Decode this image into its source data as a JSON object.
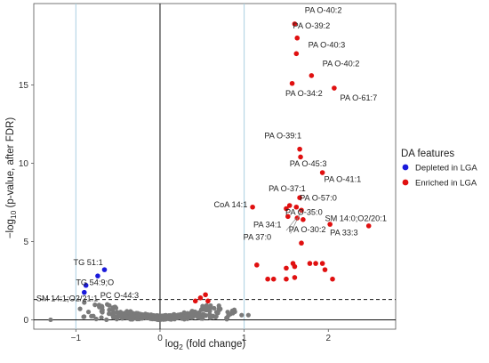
{
  "chart_data": {
    "type": "scatter",
    "title": "",
    "xlabel_main": "log",
    "xlabel_sub": "2",
    "xlabel_rest": " (fold change)",
    "ylabel_pre": "−log",
    "ylabel_sub": "10",
    "ylabel_rest": " (p-value, after FDR)",
    "xlim": [
      -1.5,
      2.8
    ],
    "ylim": [
      -0.6,
      20.2
    ],
    "x_ticks": [
      -1,
      0,
      1,
      2
    ],
    "x_tick_labels": [
      "−1",
      "0",
      "1",
      "2"
    ],
    "y_ticks": [
      0,
      5,
      10,
      15
    ],
    "y_tick_labels": [
      "0",
      "5",
      "10",
      "15"
    ],
    "fc_threshold_lines": [
      -1,
      1
    ],
    "significance_threshold": 1.3,
    "grid": false,
    "legend": {
      "title": "DA features",
      "placement": "right",
      "entries": [
        {
          "label": "Depleted in LGA",
          "color": "#1a1adb"
        },
        {
          "label": "Enriched in LGA",
          "color": "#e01010"
        }
      ]
    },
    "colors": {
      "not_significant": "#7a7a7a",
      "depleted": "#1a1adb",
      "enriched": "#e01010",
      "threshold_line": "#a9cfe0"
    },
    "series": [
      {
        "name": "Depleted in LGA",
        "points": [
          {
            "x": -0.66,
            "y": 3.2
          },
          {
            "x": -0.74,
            "y": 2.8
          },
          {
            "x": -0.88,
            "y": 2.2
          },
          {
            "x": -0.9,
            "y": 1.75
          }
        ]
      },
      {
        "name": "Enriched in LGA",
        "points": [
          {
            "x": 1.6,
            "y": 18.9
          },
          {
            "x": 1.63,
            "y": 18.0
          },
          {
            "x": 1.62,
            "y": 17.0
          },
          {
            "x": 1.8,
            "y": 15.6
          },
          {
            "x": 1.57,
            "y": 15.1
          },
          {
            "x": 2.07,
            "y": 14.8
          },
          {
            "x": 1.66,
            "y": 10.9
          },
          {
            "x": 1.67,
            "y": 10.4
          },
          {
            "x": 1.93,
            "y": 9.4
          },
          {
            "x": 1.66,
            "y": 7.8
          },
          {
            "x": 1.1,
            "y": 7.2
          },
          {
            "x": 1.54,
            "y": 7.3
          },
          {
            "x": 1.62,
            "y": 7.2
          },
          {
            "x": 1.5,
            "y": 7.1
          },
          {
            "x": 1.68,
            "y": 7.0
          },
          {
            "x": 1.52,
            "y": 6.6
          },
          {
            "x": 1.63,
            "y": 6.5
          },
          {
            "x": 1.7,
            "y": 6.4
          },
          {
            "x": 1.68,
            "y": 4.9
          },
          {
            "x": 2.02,
            "y": 6.1
          },
          {
            "x": 2.48,
            "y": 6.0
          },
          {
            "x": 1.15,
            "y": 3.5
          },
          {
            "x": 1.28,
            "y": 2.6
          },
          {
            "x": 1.35,
            "y": 2.6
          },
          {
            "x": 1.5,
            "y": 2.6
          },
          {
            "x": 1.6,
            "y": 2.7
          },
          {
            "x": 1.5,
            "y": 3.3
          },
          {
            "x": 1.58,
            "y": 3.6
          },
          {
            "x": 1.6,
            "y": 3.4
          },
          {
            "x": 1.78,
            "y": 3.6
          },
          {
            "x": 1.85,
            "y": 3.6
          },
          {
            "x": 1.93,
            "y": 3.6
          },
          {
            "x": 1.96,
            "y": 3.2
          },
          {
            "x": 2.05,
            "y": 2.6
          },
          {
            "x": 0.42,
            "y": 1.2
          },
          {
            "x": 0.48,
            "y": 1.4
          },
          {
            "x": 0.54,
            "y": 1.6
          },
          {
            "x": 0.57,
            "y": 1.2
          }
        ]
      }
    ],
    "annotations": [
      {
        "text": "PA O-40:2",
        "x": 1.72,
        "y": 19.6
      },
      {
        "text": "PA O-39:2",
        "x": 1.58,
        "y": 18.6
      },
      {
        "text": "PA O-40:3",
        "x": 1.76,
        "y": 17.4
      },
      {
        "text": "PA O-40:2",
        "x": 1.93,
        "y": 16.2
      },
      {
        "text": "PA O-34:2",
        "x": 1.49,
        "y": 14.3
      },
      {
        "text": "PA O-61:7",
        "x": 2.14,
        "y": 14.0
      },
      {
        "text": "PA O-39:1",
        "x": 1.24,
        "y": 11.6
      },
      {
        "text": "PA O-45:3",
        "x": 1.54,
        "y": 9.8
      },
      {
        "text": "PA O-41:1",
        "x": 1.95,
        "y": 8.8
      },
      {
        "text": "PA O-37:1",
        "x": 1.29,
        "y": 8.2
      },
      {
        "text": "CoA 14:1",
        "x": 0.64,
        "y": 7.2
      },
      {
        "text": "PA O-57:0",
        "x": 1.66,
        "y": 7.6
      },
      {
        "text": "PA O-35:0",
        "x": 1.49,
        "y": 6.7
      },
      {
        "text": "PA 34:1",
        "x": 1.11,
        "y": 5.9
      },
      {
        "text": "PA 37:0",
        "x": 0.99,
        "y": 5.1
      },
      {
        "text": "PA O-30:2",
        "x": 1.53,
        "y": 5.6
      },
      {
        "text": "SM 14:0;O2/20:1",
        "x": 1.96,
        "y": 6.3
      },
      {
        "text": "PA 33:3",
        "x": 2.02,
        "y": 5.4
      },
      {
        "text": "TG 51:1",
        "x": -1.03,
        "y": 3.5
      },
      {
        "text": "TG 54:9;O",
        "x": -1.0,
        "y": 2.2
      },
      {
        "text": "SM 14:1;O2/21:1",
        "x": -1.47,
        "y": 1.2
      },
      {
        "text": "PC O-44:3",
        "x": -0.71,
        "y": 1.4
      }
    ]
  }
}
